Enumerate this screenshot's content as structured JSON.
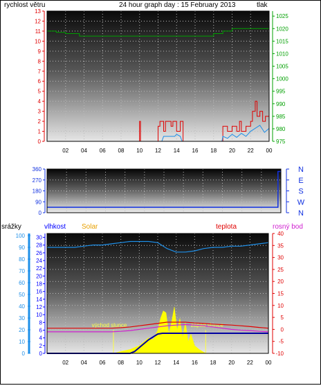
{
  "header": {
    "left_label": "rychlost větru",
    "title": "24 hour graph day : 15 February 2013",
    "right_label": "tlak"
  },
  "colors": {
    "wind": "#e00000",
    "gust": "#e00000",
    "wind_avg": "#1e8fe8",
    "pressure": "#00a000",
    "direction": "#1030e0",
    "humidity": "#1e8fe8",
    "solar": "#ffff00",
    "solar_label": "#e8a000",
    "temperature": "#e00000",
    "dewpoint": "#d020d0",
    "rain": "#0000a0",
    "rain_axis": "#1e8fe8",
    "hum_axis": "#0000ff",
    "sun_text": "#ffff40"
  },
  "chart_data": [
    {
      "type": "line",
      "name": "wind-pressure",
      "x_ticks": [
        "02",
        "04",
        "06",
        "08",
        "10",
        "12",
        "14",
        "16",
        "18",
        "20",
        "22",
        "00"
      ],
      "left_axis": {
        "label": "rychlost větru",
        "ticks": [
          0,
          1,
          2,
          3,
          4,
          5,
          6,
          7,
          8,
          9,
          10,
          11,
          12,
          13
        ],
        "ylim": [
          0,
          13
        ]
      },
      "right_axis": {
        "label": "tlak",
        "ticks": [
          975,
          980,
          985,
          990,
          995,
          1000,
          1005,
          1010,
          1015,
          1020,
          1025
        ],
        "ylim": [
          975,
          1027
        ]
      },
      "pressure": {
        "x": [
          0,
          1,
          2,
          3,
          3.5,
          4,
          5,
          6,
          7,
          8,
          9,
          10,
          11,
          12,
          13,
          14,
          15,
          16,
          17,
          18,
          19,
          20,
          21,
          22,
          23,
          24
        ],
        "y": [
          1019,
          1018.5,
          1018,
          1018,
          1017,
          1017,
          1017,
          1017,
          1017,
          1017,
          1017,
          1017,
          1017,
          1017,
          1017,
          1017,
          1017,
          1017,
          1017,
          1018,
          1019,
          1020,
          1020,
          1020,
          1020,
          1020
        ]
      },
      "gust": {
        "x": [
          0,
          9.9,
          10,
          10.1,
          11.9,
          12,
          12.2,
          12.6,
          12.8,
          13.4,
          13.6,
          14,
          14.4,
          14.7,
          14.8,
          18.9,
          19,
          19.5,
          20,
          20.5,
          20.8,
          21,
          21.5,
          22,
          22.2,
          22.5,
          22.7,
          23,
          23.3,
          23.6,
          24
        ],
        "y": [
          0,
          0,
          2,
          0,
          0,
          1.5,
          2,
          1,
          2,
          1.5,
          2,
          1,
          2,
          0,
          0,
          0,
          1.5,
          1,
          1.5,
          1,
          2,
          1,
          1.5,
          2,
          3,
          4,
          2.5,
          3,
          2,
          2.5,
          2
        ]
      },
      "wind_avg": {
        "x": [
          0,
          12.4,
          12.6,
          13.8,
          14,
          14.4,
          14.6,
          14.8,
          18.9,
          19,
          19.5,
          20,
          20.5,
          21,
          21.5,
          22,
          22.5,
          23,
          23.5,
          24
        ],
        "y": [
          0,
          0,
          0.5,
          0.5,
          0.7,
          0.5,
          0,
          0,
          0,
          0.5,
          0.3,
          0.7,
          0.4,
          0.8,
          0.5,
          1,
          1.3,
          1.6,
          0.9,
          1.3
        ]
      }
    },
    {
      "type": "line",
      "name": "wind-direction",
      "left_axis": {
        "ticks": [
          0,
          90,
          180,
          270,
          360
        ],
        "ylim": [
          0,
          360
        ]
      },
      "right_axis": {
        "ticks": [
          "N",
          "W",
          "S",
          "E",
          "N"
        ]
      },
      "direction": {
        "x": [
          0,
          23.7,
          23.7,
          24
        ],
        "y": [
          45,
          45,
          340,
          340
        ]
      }
    },
    {
      "type": "line",
      "name": "temp-humidity-solar",
      "x_ticks": [
        "02",
        "04",
        "06",
        "08",
        "10",
        "12",
        "14",
        "16",
        "18",
        "20",
        "22",
        "00"
      ],
      "axis_labels": {
        "rain": "srážky",
        "humidity": "vlhkost",
        "solar": "Solar",
        "temperature": "teplota",
        "dewpoint": "rosný bod"
      },
      "rain_axis": {
        "ticks": [
          0,
          10,
          20,
          30,
          40,
          50,
          60,
          70,
          80,
          90,
          100
        ],
        "ylim": [
          0,
          100
        ]
      },
      "humidity_axis": {
        "ticks": [
          0,
          2,
          4,
          6,
          8,
          10,
          12,
          14,
          16,
          18,
          20,
          22,
          24,
          26,
          28,
          30
        ],
        "ylim": [
          0,
          31
        ]
      },
      "temp_axis": {
        "ticks": [
          -10,
          -5,
          0,
          5,
          10,
          15,
          20,
          25,
          30,
          35,
          40
        ],
        "ylim": [
          -10,
          40
        ]
      },
      "sun_labels": {
        "sunrise": "východ slunce",
        "sunset": "západ slunce"
      },
      "sunrise_hour": 7.2,
      "sunset_hour": 17.2,
      "humidity": {
        "x": [
          0,
          1,
          2,
          3,
          4,
          5,
          6,
          7,
          8,
          9,
          10,
          11,
          12,
          13,
          14,
          15,
          16,
          17,
          18,
          19,
          20,
          21,
          22,
          23,
          24
        ],
        "y": [
          90,
          90,
          90,
          90,
          91,
          92,
          92,
          93,
          94,
          95,
          95,
          95,
          94,
          89,
          86,
          86,
          87,
          89,
          90,
          90,
          91,
          91,
          92,
          93,
          94
        ]
      },
      "temperature": {
        "x": [
          0,
          1,
          2,
          3,
          4,
          5,
          6,
          7,
          8,
          9,
          10,
          11,
          12,
          13,
          14,
          15,
          16,
          17,
          18,
          19,
          20,
          21,
          22,
          23,
          24
        ],
        "y": [
          0.5,
          0.5,
          0.5,
          0.5,
          0.5,
          0.5,
          0.5,
          0.5,
          0.7,
          1,
          1.5,
          2,
          2.5,
          3,
          3,
          3,
          2.7,
          2.5,
          2.2,
          2,
          1.8,
          1.5,
          1.2,
          0.8,
          0.5
        ]
      },
      "dewpoint": {
        "x": [
          0,
          1,
          2,
          3,
          4,
          5,
          6,
          7,
          8,
          9,
          10,
          11,
          12,
          13,
          14,
          15,
          16,
          17,
          18,
          19,
          20,
          21,
          22,
          23,
          24
        ],
        "y": [
          -1,
          -1,
          -1,
          -1,
          -1,
          -1,
          -1,
          -1,
          -0.8,
          -0.5,
          0,
          0.5,
          1,
          1.5,
          1.8,
          2,
          1.8,
          1.5,
          1,
          0.5,
          0,
          -0.3,
          -0.5,
          -0.8,
          -1
        ]
      },
      "solar": {
        "x": [
          7.2,
          8,
          9,
          10,
          10.5,
          11,
          11.5,
          12,
          12.3,
          12.6,
          12.9,
          13.2,
          13.5,
          13.8,
          14.1,
          14.4,
          14.7,
          15,
          15.3,
          15.6,
          16,
          16.5,
          17.2
        ],
        "y": [
          0,
          0.5,
          1,
          2,
          3,
          4,
          3.5,
          6,
          9,
          11,
          10.5,
          5,
          8,
          12,
          6,
          9,
          4,
          8,
          3,
          5,
          2,
          1,
          0
        ]
      },
      "rain": {
        "x": [
          0,
          9,
          9.5,
          10,
          11,
          12,
          12.5,
          13,
          24
        ],
        "y": [
          0,
          0,
          0.5,
          1.5,
          3.5,
          5,
          5.2,
          5.2,
          5.2
        ]
      }
    }
  ]
}
